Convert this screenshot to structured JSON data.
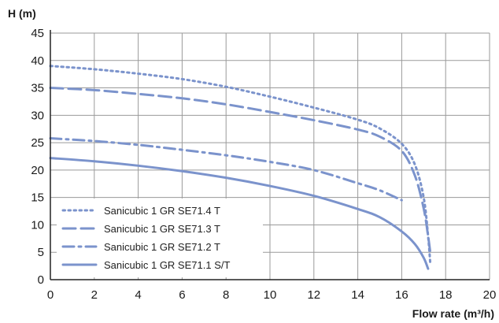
{
  "chart_data": {
    "type": "line",
    "xlabel": "Flow rate (m³/h)",
    "ylabel": "H (m)",
    "xlim": [
      0,
      20
    ],
    "ylim": [
      0,
      45
    ],
    "x_ticks": [
      0,
      2,
      4,
      6,
      8,
      10,
      12,
      14,
      16,
      18,
      20
    ],
    "y_ticks": [
      0,
      5,
      10,
      15,
      20,
      25,
      30,
      35,
      40,
      45
    ],
    "grid": true,
    "legend_position": "bottom-left",
    "line_color": "#7b93cc",
    "series": [
      {
        "name": "Sanicubic 1 GR SE71.4 T",
        "style": "dotted",
        "points": [
          [
            0,
            39
          ],
          [
            2,
            38.4
          ],
          [
            4,
            37.6
          ],
          [
            6,
            36.6
          ],
          [
            8,
            35.2
          ],
          [
            10,
            33.4
          ],
          [
            12,
            31.4
          ],
          [
            14,
            29.2
          ],
          [
            15,
            27.6
          ],
          [
            16,
            24.8
          ],
          [
            16.6,
            21
          ],
          [
            17,
            15
          ],
          [
            17.2,
            8
          ],
          [
            17.3,
            3
          ]
        ]
      },
      {
        "name": "Sanicubic 1 GR SE71.3 T",
        "style": "dashed",
        "points": [
          [
            0,
            35
          ],
          [
            2,
            34.6
          ],
          [
            4,
            33.9
          ],
          [
            6,
            33.1
          ],
          [
            8,
            32
          ],
          [
            10,
            30.6
          ],
          [
            12,
            29.1
          ],
          [
            14,
            27.4
          ],
          [
            15,
            26.1
          ],
          [
            16,
            23.5
          ],
          [
            16.6,
            19
          ],
          [
            17,
            13
          ],
          [
            17.2,
            8
          ],
          [
            17.3,
            5
          ]
        ]
      },
      {
        "name": "Sanicubic 1 GR SE71.2 T",
        "style": "dashdot",
        "points": [
          [
            0,
            25.8
          ],
          [
            2,
            25.3
          ],
          [
            4,
            24.6
          ],
          [
            6,
            23.7
          ],
          [
            8,
            22.7
          ],
          [
            10,
            21.5
          ],
          [
            12,
            20
          ],
          [
            14,
            17.6
          ],
          [
            15,
            16.3
          ],
          [
            16,
            14.5
          ]
        ]
      },
      {
        "name": "Sanicubic 1 GR SE71.1 S/T",
        "style": "solid",
        "points": [
          [
            0,
            22.2
          ],
          [
            2,
            21.6
          ],
          [
            4,
            20.8
          ],
          [
            6,
            19.8
          ],
          [
            8,
            18.6
          ],
          [
            10,
            17.1
          ],
          [
            12,
            15.3
          ],
          [
            14,
            12.9
          ],
          [
            15,
            11.4
          ],
          [
            16,
            8.8
          ],
          [
            16.6,
            6.5
          ],
          [
            17,
            4
          ],
          [
            17.2,
            2
          ]
        ]
      }
    ]
  }
}
